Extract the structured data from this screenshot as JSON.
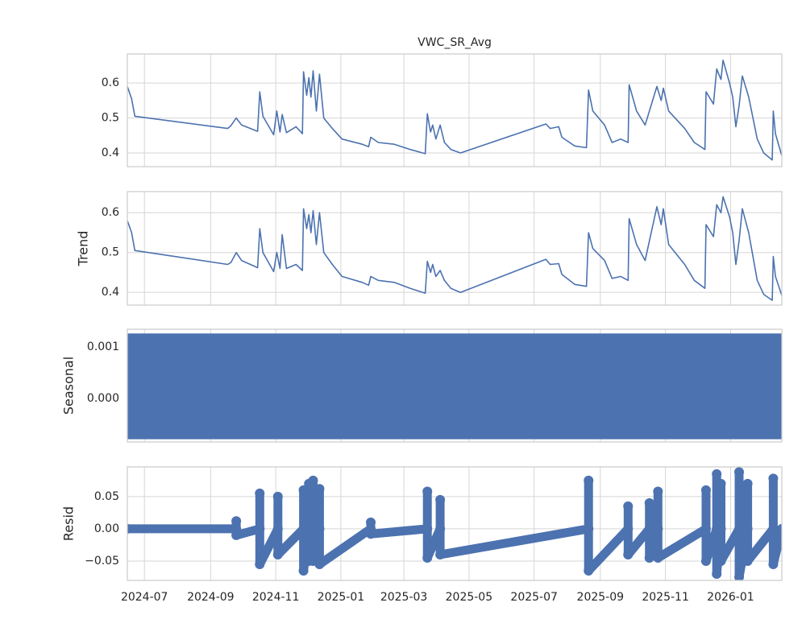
{
  "chart_data": [
    {
      "type": "line",
      "title": "VWC_SR_Avg",
      "color": "#4c72b0",
      "x": [
        "2024-06-15",
        "2024-06-19",
        "2024-06-22",
        "2024-09-17",
        "2024-09-20",
        "2024-09-25",
        "2024-09-30",
        "2024-10-15",
        "2024-10-17",
        "2024-10-20",
        "2024-10-30",
        "2024-11-02",
        "2024-11-05",
        "2024-11-07",
        "2024-11-11",
        "2024-11-20",
        "2024-11-26",
        "2024-11-27",
        "2024-11-30",
        "2024-12-02",
        "2024-12-04",
        "2024-12-06",
        "2024-12-09",
        "2024-12-12",
        "2024-12-16",
        "2024-12-24",
        "2025-01-02",
        "2025-01-21",
        "2025-01-27",
        "2025-01-29",
        "2025-02-05",
        "2025-02-20",
        "2025-03-07",
        "2025-03-21",
        "2025-03-23",
        "2025-03-26",
        "2025-03-28",
        "2025-03-31",
        "2025-04-04",
        "2025-04-08",
        "2025-04-14",
        "2025-04-23",
        "2025-07-12",
        "2025-07-16",
        "2025-07-24",
        "2025-07-27",
        "2025-08-08",
        "2025-08-19",
        "2025-08-21",
        "2025-08-25",
        "2025-09-05",
        "2025-09-12",
        "2025-09-20",
        "2025-09-27",
        "2025-09-28",
        "2025-10-05",
        "2025-10-13",
        "2025-10-24",
        "2025-10-28",
        "2025-10-30",
        "2025-11-04",
        "2025-11-19",
        "2025-11-28",
        "2025-12-08",
        "2025-12-09",
        "2025-12-16",
        "2025-12-19",
        "2025-12-23",
        "2025-12-25",
        "2025-12-31",
        "2026-01-03",
        "2026-01-06",
        "2026-01-09",
        "2026-01-12",
        "2026-01-18",
        "2026-01-26",
        "2026-02-01",
        "2026-02-09",
        "2026-02-10",
        "2026-02-12",
        "2026-02-18"
      ],
      "values": [
        0.59,
        0.555,
        0.505,
        0.47,
        0.478,
        0.5,
        0.48,
        0.462,
        0.575,
        0.505,
        0.452,
        0.52,
        0.46,
        0.51,
        0.458,
        0.475,
        0.455,
        0.632,
        0.565,
        0.615,
        0.56,
        0.635,
        0.52,
        0.625,
        0.5,
        0.47,
        0.44,
        0.425,
        0.418,
        0.445,
        0.43,
        0.425,
        0.41,
        0.398,
        0.512,
        0.46,
        0.48,
        0.44,
        0.48,
        0.43,
        0.41,
        0.4,
        0.483,
        0.47,
        0.475,
        0.445,
        0.42,
        0.415,
        0.58,
        0.52,
        0.48,
        0.43,
        0.44,
        0.43,
        0.595,
        0.52,
        0.48,
        0.59,
        0.55,
        0.585,
        0.52,
        0.47,
        0.43,
        0.41,
        0.575,
        0.54,
        0.64,
        0.61,
        0.665,
        0.6,
        0.56,
        0.475,
        0.535,
        0.62,
        0.56,
        0.44,
        0.4,
        0.38,
        0.52,
        0.455,
        0.392
      ],
      "ylim": [
        0.361,
        0.683
      ],
      "yticks": [
        0.4,
        0.5,
        0.6
      ]
    },
    {
      "type": "line",
      "ylabel": "Trend",
      "color": "#4c72b0",
      "x": [
        "2024-06-15",
        "2024-06-19",
        "2024-06-22",
        "2024-09-17",
        "2024-09-20",
        "2024-09-25",
        "2024-09-30",
        "2024-10-15",
        "2024-10-17",
        "2024-10-20",
        "2024-10-30",
        "2024-11-02",
        "2024-11-05",
        "2024-11-07",
        "2024-11-11",
        "2024-11-20",
        "2024-11-26",
        "2024-11-27",
        "2024-11-30",
        "2024-12-02",
        "2024-12-04",
        "2024-12-06",
        "2024-12-09",
        "2024-12-12",
        "2024-12-16",
        "2024-12-24",
        "2025-01-02",
        "2025-01-21",
        "2025-01-27",
        "2025-01-29",
        "2025-02-05",
        "2025-02-20",
        "2025-03-07",
        "2025-03-21",
        "2025-03-23",
        "2025-03-26",
        "2025-03-28",
        "2025-03-31",
        "2025-04-04",
        "2025-04-08",
        "2025-04-14",
        "2025-04-23",
        "2025-07-12",
        "2025-07-16",
        "2025-07-24",
        "2025-07-27",
        "2025-08-08",
        "2025-08-19",
        "2025-08-21",
        "2025-08-25",
        "2025-09-05",
        "2025-09-12",
        "2025-09-20",
        "2025-09-27",
        "2025-09-28",
        "2025-10-05",
        "2025-10-13",
        "2025-10-24",
        "2025-10-28",
        "2025-10-30",
        "2025-11-04",
        "2025-11-19",
        "2025-11-28",
        "2025-12-08",
        "2025-12-09",
        "2025-12-16",
        "2025-12-19",
        "2025-12-23",
        "2025-12-25",
        "2025-12-31",
        "2026-01-03",
        "2026-01-06",
        "2026-01-09",
        "2026-01-12",
        "2026-01-18",
        "2026-01-26",
        "2026-02-01",
        "2026-02-09",
        "2026-02-10",
        "2026-02-12",
        "2026-02-18"
      ],
      "values": [
        0.58,
        0.55,
        0.505,
        0.47,
        0.475,
        0.5,
        0.48,
        0.462,
        0.56,
        0.5,
        0.452,
        0.5,
        0.46,
        0.545,
        0.46,
        0.47,
        0.455,
        0.61,
        0.56,
        0.595,
        0.55,
        0.605,
        0.52,
        0.6,
        0.5,
        0.47,
        0.44,
        0.425,
        0.418,
        0.44,
        0.43,
        0.425,
        0.41,
        0.398,
        0.478,
        0.45,
        0.47,
        0.44,
        0.455,
        0.43,
        0.41,
        0.4,
        0.483,
        0.47,
        0.472,
        0.445,
        0.42,
        0.415,
        0.55,
        0.51,
        0.48,
        0.435,
        0.44,
        0.43,
        0.585,
        0.52,
        0.48,
        0.615,
        0.57,
        0.61,
        0.52,
        0.47,
        0.43,
        0.41,
        0.57,
        0.54,
        0.62,
        0.6,
        0.64,
        0.59,
        0.55,
        0.47,
        0.53,
        0.61,
        0.55,
        0.43,
        0.395,
        0.38,
        0.49,
        0.44,
        0.392
      ],
      "ylim": [
        0.368,
        0.653
      ],
      "yticks": [
        0.4,
        0.5,
        0.6
      ]
    },
    {
      "type": "area",
      "ylabel": "Seasonal",
      "color": "#4c72b0",
      "x": [
        "2024-06-15",
        "2024-06-15",
        "2026-02-18",
        "2026-02-18"
      ],
      "values": [
        -0.00078,
        0.00125,
        0.00125,
        -0.00078
      ],
      "ylim": [
        -0.00084,
        0.00134
      ],
      "yticks": [
        {
          "value": 0,
          "label": "0.000"
        },
        0.001
      ]
    },
    {
      "type": "scatter",
      "ylabel": "Resid",
      "color": "#4c72b0",
      "x": [
        "2024-06-15",
        "2024-09-25",
        "2024-09-25",
        "2024-09-25",
        "2024-10-17",
        "2024-10-17",
        "2024-10-17",
        "2024-11-03",
        "2024-11-03",
        "2024-11-03",
        "2024-11-27",
        "2024-11-27",
        "2024-11-27",
        "2024-12-02",
        "2024-12-02",
        "2024-12-02",
        "2024-12-06",
        "2024-12-06",
        "2024-12-06",
        "2024-12-12",
        "2024-12-12",
        "2024-12-12",
        "2025-01-29",
        "2025-01-29",
        "2025-01-29",
        "2025-03-23",
        "2025-03-23",
        "2025-03-23",
        "2025-04-04",
        "2025-04-04",
        "2025-04-04",
        "2025-08-21",
        "2025-08-21",
        "2025-08-21",
        "2025-09-27",
        "2025-09-27",
        "2025-09-27",
        "2025-10-17",
        "2025-10-17",
        "2025-10-17",
        "2025-10-25",
        "2025-10-25",
        "2025-10-25",
        "2025-12-09",
        "2025-12-09",
        "2025-12-09",
        "2025-12-19",
        "2025-12-19",
        "2025-12-19",
        "2025-12-23",
        "2025-12-23",
        "2025-12-23",
        "2026-01-09",
        "2026-01-09",
        "2026-01-09",
        "2026-01-17",
        "2026-01-17",
        "2026-01-17",
        "2026-02-10",
        "2026-02-10",
        "2026-02-10",
        "2026-02-18"
      ],
      "values": [
        0,
        0,
        0.012,
        -0.01,
        0,
        0.055,
        -0.055,
        0,
        0.05,
        -0.04,
        0,
        0.06,
        -0.065,
        0,
        0.07,
        -0.05,
        0,
        0.075,
        -0.05,
        0,
        0.062,
        -0.055,
        0,
        0.01,
        -0.008,
        0,
        0.058,
        -0.045,
        0,
        0.045,
        -0.04,
        0,
        0.075,
        -0.065,
        0,
        0.035,
        -0.04,
        0,
        0.04,
        -0.045,
        0,
        0.058,
        -0.045,
        0,
        0.06,
        -0.05,
        0,
        0.085,
        -0.07,
        0,
        0.07,
        -0.05,
        0,
        0.088,
        -0.075,
        0,
        0.07,
        -0.05,
        0,
        0.078,
        -0.055,
        0
      ],
      "ylim": [
        -0.08,
        0.096
      ],
      "yticks": [
        {
          "value": -0.05,
          "label": "−0.05"
        },
        {
          "value": 0,
          "label": "0.00"
        },
        0.05
      ],
      "xlim": [
        "2024-06-15",
        "2026-02-18"
      ],
      "xticks": [
        {
          "value": "2024-07-01",
          "label": "2024-07"
        },
        {
          "value": "2024-09-01",
          "label": "2024-09"
        },
        {
          "value": "2024-11-01",
          "label": "2024-11"
        },
        {
          "value": "2025-01-01",
          "label": "2025-01"
        },
        {
          "value": "2025-03-01",
          "label": "2025-03"
        },
        {
          "value": "2025-05-01",
          "label": "2025-05"
        },
        {
          "value": "2025-07-01",
          "label": "2025-07"
        },
        {
          "value": "2025-09-01",
          "label": "2025-09"
        },
        {
          "value": "2025-11-01",
          "label": "2025-11"
        },
        {
          "value": "2026-01-01",
          "label": "2026-01"
        }
      ]
    }
  ]
}
